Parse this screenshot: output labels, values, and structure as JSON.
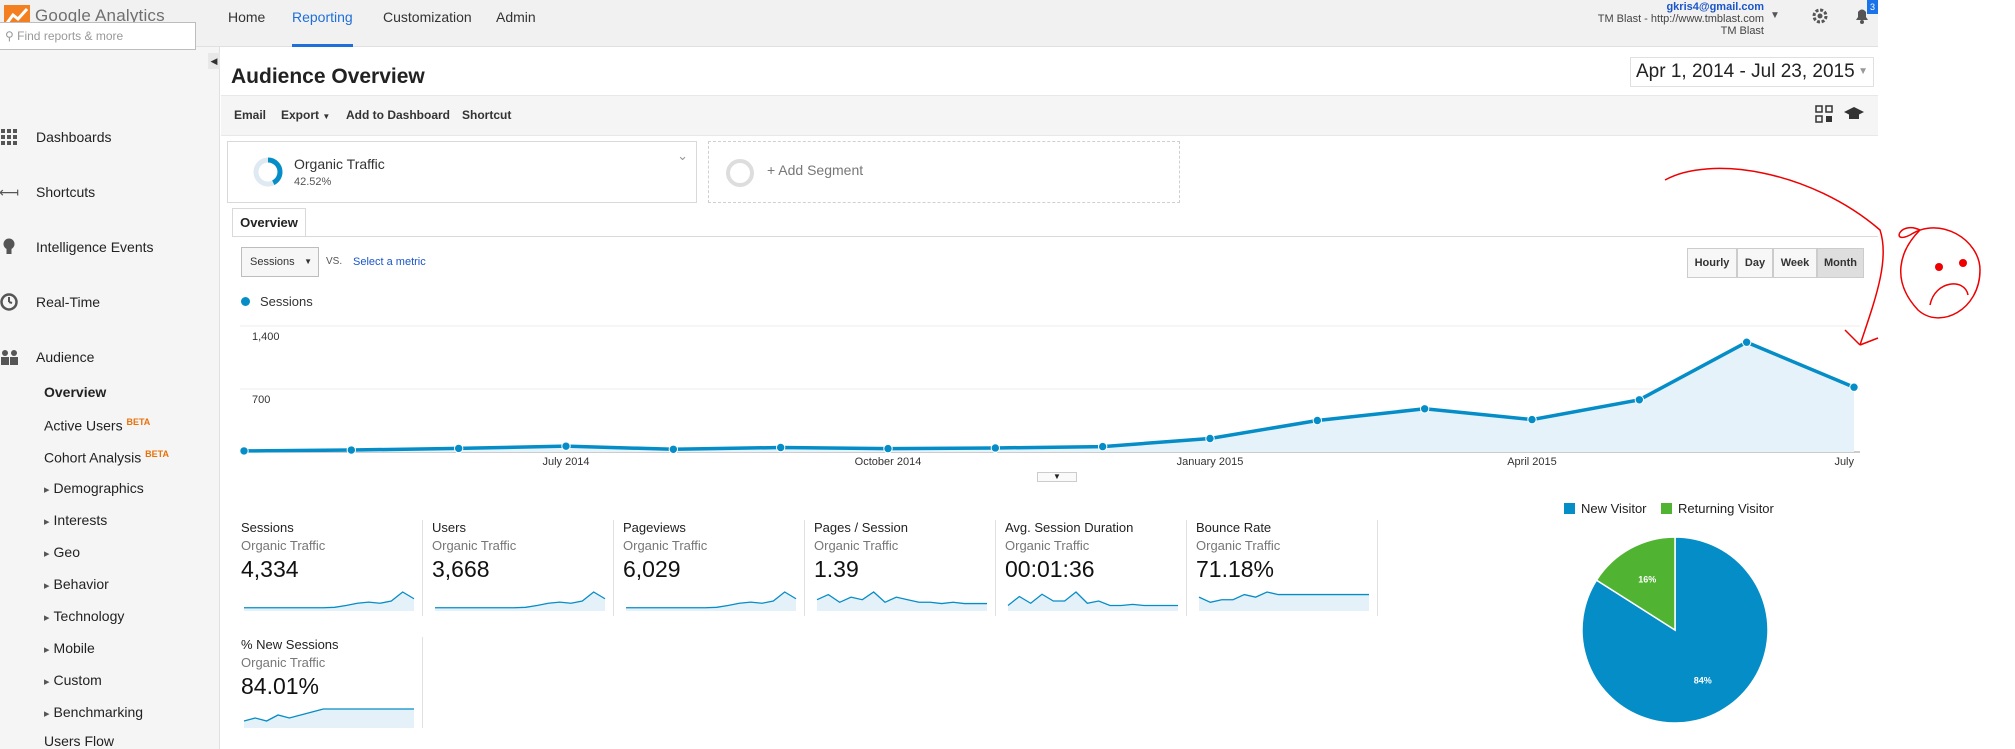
{
  "app": {
    "name": "Google Analytics"
  },
  "nav": {
    "home": "Home",
    "reporting": "Reporting",
    "customization": "Customization",
    "admin": "Admin"
  },
  "account": {
    "email": "gkris4@gmail.com",
    "property": "TM Blast - http://www.tmblast.com",
    "view": "TM Blast",
    "notification_count": "3"
  },
  "sidebar": {
    "search_placeholder": "Find reports & more",
    "items": [
      {
        "label": "Dashboards",
        "icon": "dashboard-grid-icon"
      },
      {
        "label": "Shortcuts",
        "icon": "shortcut-arrow-icon"
      },
      {
        "label": "Intelligence Events",
        "icon": "lightbulb-icon"
      },
      {
        "label": "Real-Time",
        "icon": "clock-icon"
      },
      {
        "label": "Audience",
        "icon": "people-icon"
      }
    ],
    "audience_sub": {
      "overview": "Overview",
      "active_users": "Active Users",
      "cohort": "Cohort Analysis",
      "beta": "BETA",
      "groups": [
        "Demographics",
        "Interests",
        "Geo",
        "Behavior",
        "Technology",
        "Mobile",
        "Custom",
        "Benchmarking"
      ],
      "users_flow": "Users Flow"
    }
  },
  "page": {
    "title": "Audience Overview",
    "date_range": "Apr 1, 2014 - Jul 23, 2015"
  },
  "toolbar": {
    "email": "Email",
    "export": "Export",
    "add_dashboard": "Add to Dashboard",
    "shortcut": "Shortcut"
  },
  "segments": {
    "organic_label": "Organic Traffic",
    "organic_pct": "42.52%",
    "add_segment": "+ Add Segment"
  },
  "tabs": {
    "overview": "Overview"
  },
  "chart_controls": {
    "metric_select": "Sessions",
    "vs": "VS.",
    "select_metric": "Select a metric",
    "granularity": [
      "Hourly",
      "Day",
      "Week",
      "Month"
    ],
    "selected_granularity": "Month"
  },
  "chart_data": [
    {
      "type": "area",
      "series": [
        {
          "name": "Sessions",
          "values": [
            12,
            22,
            40,
            65,
            30,
            50,
            38,
            45,
            60,
            150,
            350,
            480,
            360,
            580,
            1220,
            720
          ],
          "color": "#058dc7"
        }
      ],
      "x": [
        "Apr 2014",
        "May 2014",
        "Jun 2014",
        "Jul 2014",
        "Aug 2014",
        "Sep 2014",
        "Oct 2014",
        "Nov 2014",
        "Dec 2014",
        "Jan 2015",
        "Feb 2015",
        "Mar 2015",
        "Apr 2015",
        "May 2015",
        "Jun 2015",
        "Jul 2015"
      ],
      "x_tick_labels": [
        "July 2014",
        "October 2014",
        "January 2015",
        "April 2015",
        "July"
      ],
      "y_tick_labels": [
        "1,400",
        "700"
      ],
      "ylim": [
        0,
        1400
      ],
      "legend": "Sessions",
      "grid": true
    },
    {
      "type": "pie",
      "labels": [
        "New Visitor",
        "Returning Visitor"
      ],
      "values": [
        84,
        16
      ],
      "value_labels": [
        "84%",
        "16%"
      ],
      "colors": [
        "#058dc7",
        "#50b432"
      ],
      "legend": "top"
    }
  ],
  "metrics": [
    {
      "name": "Sessions",
      "segment": "Organic Traffic",
      "value": "4,334",
      "spark": [
        1,
        1,
        1,
        1,
        1,
        1,
        1,
        1,
        1.2,
        2,
        3,
        3.5,
        3,
        4,
        8,
        5
      ]
    },
    {
      "name": "Users",
      "segment": "Organic Traffic",
      "value": "3,668",
      "spark": [
        1,
        1,
        1,
        1,
        1,
        1,
        1,
        1,
        1.2,
        2,
        3,
        3.5,
        3,
        4,
        8,
        5
      ]
    },
    {
      "name": "Pageviews",
      "segment": "Organic Traffic",
      "value": "6,029",
      "spark": [
        1,
        1,
        1,
        1,
        1,
        1,
        1,
        1,
        1.2,
        2,
        3,
        3.5,
        3,
        4,
        8,
        5
      ]
    },
    {
      "name": "Pages / Session",
      "segment": "Organic Traffic",
      "value": "1.39",
      "spark": [
        4,
        6,
        3,
        5,
        4,
        7,
        3,
        5,
        4,
        3,
        3,
        2.5,
        3,
        2.5,
        2.5,
        2.5
      ]
    },
    {
      "name": "Avg. Session Duration",
      "segment": "Organic Traffic",
      "value": "00:01:36",
      "spark": [
        2,
        6,
        3,
        7,
        4,
        4,
        8,
        3,
        4,
        2,
        2,
        2.5,
        2,
        2,
        2,
        2
      ]
    },
    {
      "name": "Bounce Rate",
      "segment": "Organic Traffic",
      "value": "71.18%",
      "spark": [
        5,
        3,
        4,
        4,
        6,
        5,
        7,
        6,
        6,
        6,
        6,
        6,
        6,
        6,
        6,
        6
      ]
    },
    {
      "name": "% New Sessions",
      "segment": "Organic Traffic",
      "value": "84.01%",
      "spark": [
        2,
        3,
        2,
        4,
        3,
        4,
        5,
        6,
        6,
        6,
        6,
        6,
        6,
        6,
        6,
        6
      ]
    }
  ]
}
